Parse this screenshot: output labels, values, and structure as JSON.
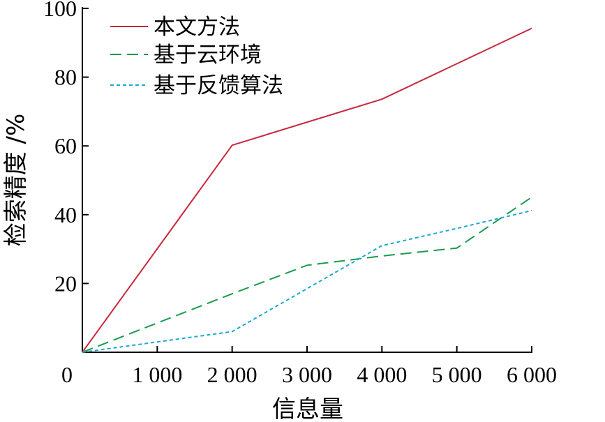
{
  "chart_data": {
    "type": "line",
    "xlabel": "信息量",
    "ylabel": "检索精度 /%",
    "x_ticks": [
      "0",
      "1 000",
      "2 000",
      "3 000",
      "4 000",
      "5 000",
      "6 000"
    ],
    "y_ticks": [
      "20",
      "40",
      "60",
      "80",
      "100"
    ],
    "xlim": [
      0,
      6000
    ],
    "ylim": [
      0,
      100
    ],
    "grid": false,
    "legend_position": "top-left",
    "series": [
      {
        "name": "本文方法",
        "color": "#c8283c",
        "dash": "solid",
        "x": [
          0,
          2000,
          4000,
          6000
        ],
        "y": [
          0,
          60.2,
          73.6,
          94.2
        ]
      },
      {
        "name": "基于云环境",
        "color": "#1a9a50",
        "dash": "long-dash",
        "x": [
          0,
          1000,
          2000,
          3000,
          4000,
          5000,
          6000
        ],
        "y": [
          0,
          8.5,
          17,
          25.3,
          28,
          30.3,
          45.1
        ]
      },
      {
        "name": "基于反馈算法",
        "color": "#19a9cf",
        "dash": "dotted",
        "x": [
          0,
          2000,
          4000,
          5000,
          6000
        ],
        "y": [
          0,
          6,
          31,
          36,
          41.2
        ]
      }
    ]
  }
}
